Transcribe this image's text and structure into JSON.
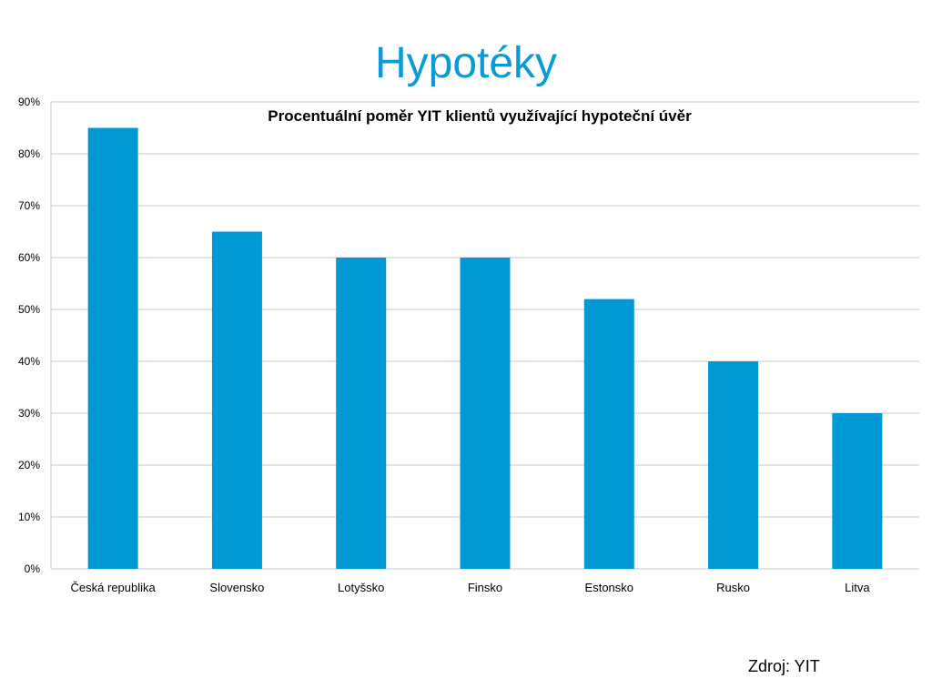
{
  "slide": {
    "title": "Hypotéky",
    "source": "Zdroj: YIT"
  },
  "colors": {
    "title": "#0a9bd6",
    "bar": "#0099d6",
    "grid": "#c8c8c8",
    "axis_text": "#000000"
  },
  "chart_data": {
    "type": "bar",
    "title": "Procentuální poměr YIT klientů využívající hypoteční úvěr",
    "xlabel": "",
    "ylabel": "",
    "categories": [
      "Česká republika",
      "Slovensko",
      "Lotyšsko",
      "Finsko",
      "Estonsko",
      "Rusko",
      "Litva"
    ],
    "values": [
      85,
      65,
      60,
      60,
      52,
      40,
      30
    ],
    "ylim": [
      0,
      90
    ],
    "ytick_step": 10,
    "ytick_format": "%",
    "grid": true,
    "legend": "none"
  }
}
